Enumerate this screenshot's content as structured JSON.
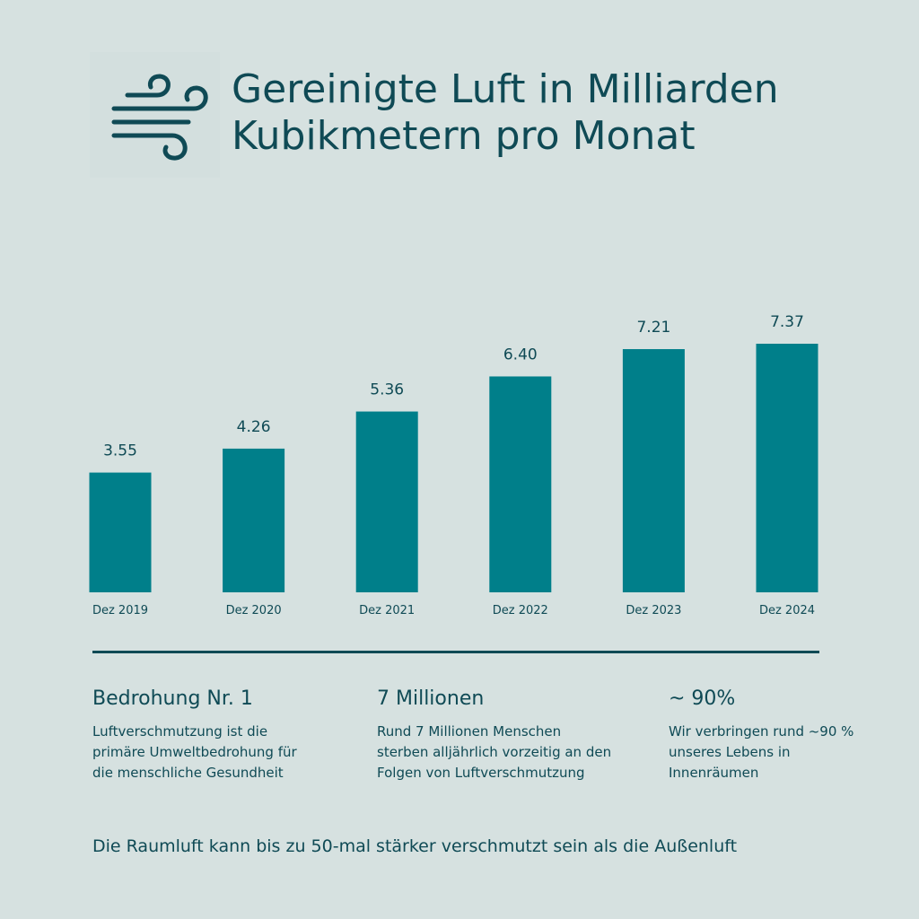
{
  "header": {
    "icon": "wind-icon",
    "title_line1": "Gereinigte Luft in Milliarden",
    "title_line2": "Kubikmetern pro Monat"
  },
  "colors": {
    "background": "#d6e1e0",
    "bar": "#007f8a",
    "text": "#0f4a55"
  },
  "chart_data": {
    "type": "bar",
    "title": "Gereinigte Luft in Milliarden Kubikmetern pro Monat",
    "categories": [
      "Dez 2019",
      "Dez 2020",
      "Dez 2021",
      "Dez 2022",
      "Dez 2023",
      "Dez 2024"
    ],
    "values": [
      3.55,
      4.26,
      5.36,
      6.4,
      7.21,
      7.37
    ],
    "value_labels": [
      "3.55",
      "4.26",
      "5.36",
      "6.40",
      "7.21",
      "7.37"
    ],
    "xlabel": "",
    "ylabel": "",
    "ylim": [
      0,
      7.37
    ],
    "grid": false,
    "legend": "none"
  },
  "facts": [
    {
      "heading": "Bedrohung Nr. 1",
      "lines": [
        "Luftverschmutzung ist die",
        "primäre Umweltbedrohung für",
        "die menschliche Gesundheit"
      ]
    },
    {
      "heading": "7 Millionen",
      "lines": [
        "Rund 7 Millionen Menschen",
        "sterben alljährlich vorzeitig an den",
        "Folgen von Luftverschmutzung"
      ]
    },
    {
      "heading": "~ 90%",
      "lines": [
        "Wir verbringen rund ~90 %",
        "unseres Lebens in",
        "Innenräumen"
      ]
    }
  ],
  "footer": {
    "note": "Die Raumluft kann bis zu 50-mal stärker verschmutzt sein als die Außenluft"
  }
}
